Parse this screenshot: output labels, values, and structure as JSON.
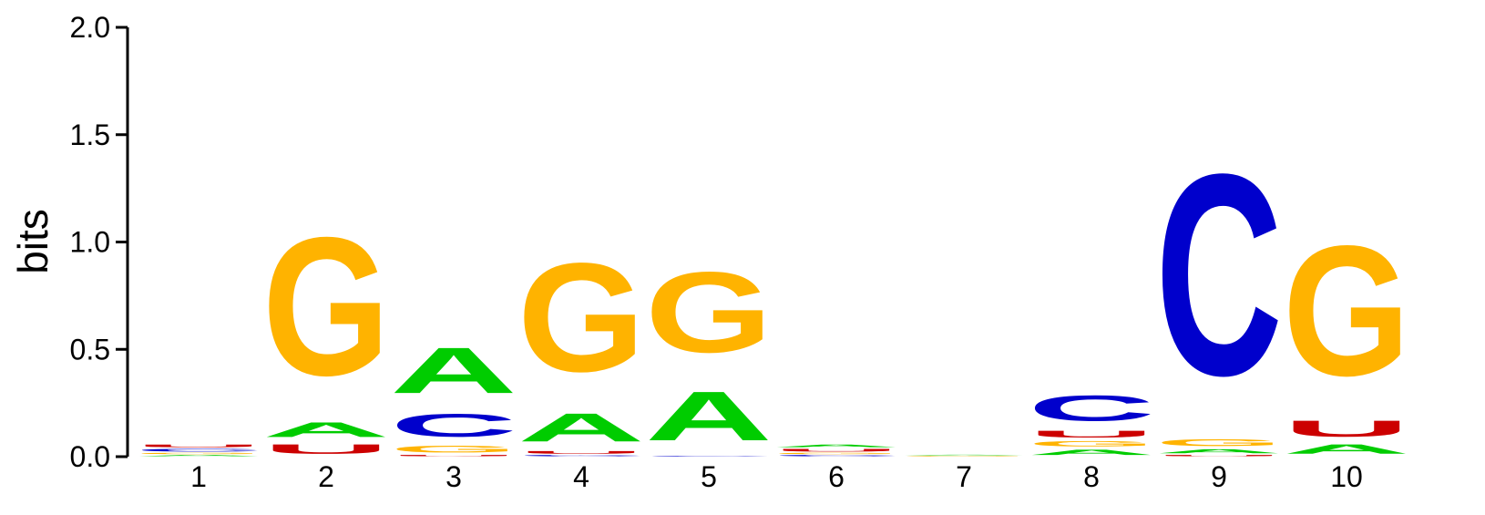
{
  "chart_data": {
    "type": "sequence-logo",
    "ylabel": "bits",
    "ylim": [
      0,
      2.0
    ],
    "yticks": [
      "0.0",
      "0.5",
      "1.0",
      "1.5",
      "2.0"
    ],
    "positions": [
      "1",
      "2",
      "3",
      "4",
      "5",
      "6",
      "7",
      "8",
      "9",
      "10"
    ],
    "colors": {
      "A": "#00cc00",
      "C": "#0000cc",
      "G": "#ffb300",
      "U": "#cc0000"
    },
    "stacks": [
      [
        {
          "l": "A",
          "h": 0.01
        },
        {
          "l": "G",
          "h": 0.01
        },
        {
          "l": "C",
          "h": 0.02
        },
        {
          "l": "U",
          "h": 0.02
        }
      ],
      [
        {
          "l": "U",
          "h": 0.07
        },
        {
          "l": "A",
          "h": 0.11
        },
        {
          "l": "G",
          "h": 1.03
        }
      ],
      [
        {
          "l": "U",
          "h": 0.01
        },
        {
          "l": "G",
          "h": 0.05
        },
        {
          "l": "C",
          "h": 0.17
        },
        {
          "l": "A",
          "h": 0.34
        }
      ],
      [
        {
          "l": "C",
          "h": 0.01
        },
        {
          "l": "U",
          "h": 0.02
        },
        {
          "l": "A",
          "h": 0.21
        },
        {
          "l": "G",
          "h": 0.81
        }
      ],
      [
        {
          "l": "C",
          "h": 0.005
        },
        {
          "l": "A",
          "h": 0.365
        },
        {
          "l": "G",
          "h": 0.6
        }
      ],
      [
        {
          "l": "C",
          "h": 0.01
        },
        {
          "l": "G",
          "h": 0.01
        },
        {
          "l": "U",
          "h": 0.02
        },
        {
          "l": "A",
          "h": 0.02
        }
      ],
      [
        {
          "l": "G",
          "h": 0.005
        },
        {
          "l": "A",
          "h": 0.005
        }
      ],
      [
        {
          "l": "A",
          "h": 0.04
        },
        {
          "l": "G",
          "h": 0.04
        },
        {
          "l": "U",
          "h": 0.05
        },
        {
          "l": "C",
          "h": 0.19
        }
      ],
      [
        {
          "l": "U",
          "h": 0.01
        },
        {
          "l": "A",
          "h": 0.03
        },
        {
          "l": "G",
          "h": 0.05
        },
        {
          "l": "C",
          "h": 1.5
        }
      ],
      [
        {
          "l": "A",
          "h": 0.07
        },
        {
          "l": "U",
          "h": 0.12
        },
        {
          "l": "G",
          "h": 0.97
        }
      ]
    ]
  }
}
